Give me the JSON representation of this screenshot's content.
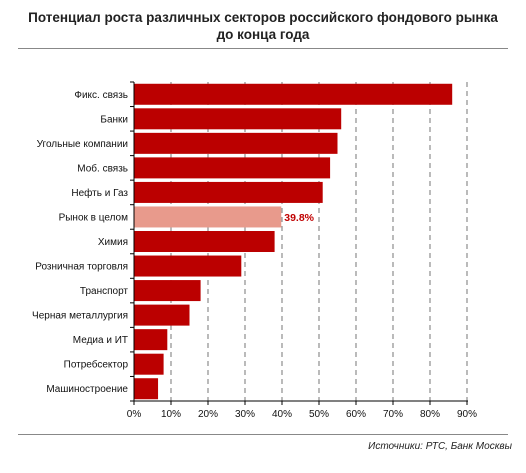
{
  "chart_data": {
    "type": "bar",
    "orientation": "horizontal",
    "title": "Потенциал роста различных секторов российского фондового рынка до конца года",
    "title_lines": [
      "Потенциал роста различных секторов российского фондового рынка",
      "до конца года"
    ],
    "categories": [
      "Фикс. связь",
      "Банки",
      "Угольные компании",
      "Моб. связь",
      "Нефть и Газ",
      "Рынок в целом",
      "Химия",
      "Розничная торговля",
      "Транспорт",
      "Черная металлургия",
      "Медиа и ИТ",
      "Потребсектор",
      "Машиностроение"
    ],
    "values": [
      86,
      56,
      55,
      53,
      51,
      39.8,
      38,
      29,
      18,
      15,
      9,
      8,
      6.5
    ],
    "highlight_index": 5,
    "data_labels": [
      {
        "index": 5,
        "text": "39.8%"
      }
    ],
    "xlim": [
      0,
      90
    ],
    "xticks": [
      "0%",
      "10%",
      "20%",
      "30%",
      "40%",
      "50%",
      "60%",
      "70%",
      "80%",
      "90%"
    ],
    "grid": "vertical dashed",
    "colors": {
      "bar": "#bb0000",
      "highlight_bar": "#e89a8c",
      "data_label": "#c00000"
    }
  },
  "source": "Источники: РТС, Банк Москвы"
}
